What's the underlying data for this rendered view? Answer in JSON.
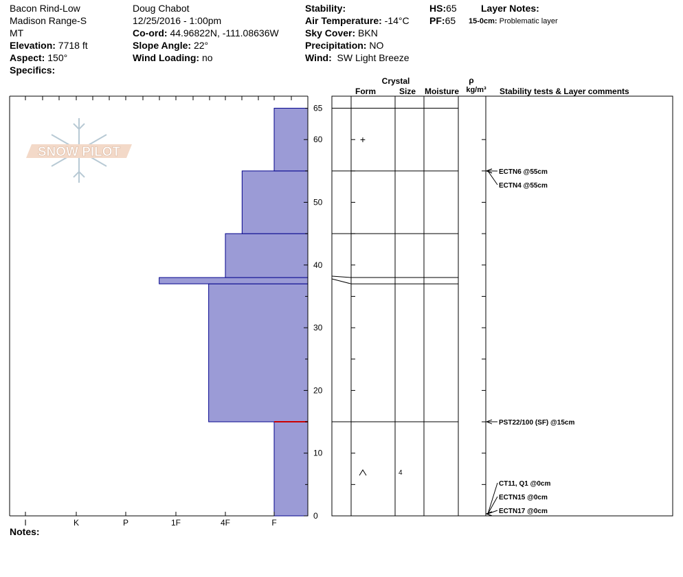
{
  "header": {
    "site": "Bacon Rind-Low",
    "range": "Madison Range-S",
    "state": "MT",
    "elevation_label": "Elevation:",
    "elevation": "7718 ft",
    "aspect_label": "Aspect:",
    "aspect": "150°",
    "specifics_label": "Specifics:",
    "observer": "Doug Chabot",
    "datetime": "12/25/2016 - 1:00pm",
    "coord_label": "Co-ord:",
    "coord": "44.96822N, -111.08636W",
    "slope_label": "Slope Angle:",
    "slope": "22°",
    "wind_loading_label": "Wind Loading:",
    "wind_loading": "no",
    "stability_label": "Stability:",
    "air_temp_label": "Air Temperature:",
    "air_temp": "-14°C",
    "sky_label": "Sky Cover:",
    "sky": "BKN",
    "precip_label": "Precipitation:",
    "precip": "NO",
    "wind_label": "Wind:",
    "wind": "SW Light Breeze",
    "hs_label": "HS:",
    "hs": "65",
    "pf_label": "PF:",
    "pf": "65",
    "layer_notes_label": "Layer Notes:",
    "layer_note_range": "15-0cm:",
    "layer_note_text": "Problematic layer"
  },
  "notes_label": "Notes:",
  "logo_text": "SNOW PILOT",
  "colors": {
    "profile_fill": "#9b9bd6",
    "profile_stroke": "#00008b",
    "weak_layer": "#cc0000"
  },
  "chart_data": {
    "type": "snow-profile",
    "y_ticks": [
      0,
      10,
      20,
      30,
      40,
      50,
      60,
      65
    ],
    "ylim": [
      0,
      65
    ],
    "hardness_scale": [
      "I",
      "K",
      "P",
      "1F",
      "4F",
      "F"
    ],
    "hardness_layers": [
      {
        "bottom": 0,
        "top": 15,
        "hardness": "F"
      },
      {
        "bottom": 15,
        "top": 37,
        "hardness": "4F+"
      },
      {
        "bottom": 37,
        "top": 38,
        "hardness": "1F+"
      },
      {
        "bottom": 38,
        "top": 45,
        "hardness": "4F"
      },
      {
        "bottom": 45,
        "top": 55,
        "hardness": "4F-"
      },
      {
        "bottom": 55,
        "top": 65,
        "hardness": "F"
      }
    ],
    "weak_layer_depth": 15,
    "layer_boundaries": [
      65,
      55,
      45,
      38,
      37,
      15
    ],
    "column_headers": {
      "crystal": "Crystal",
      "form": "Form",
      "size": "Size",
      "moisture": "Moisture",
      "rho": "ρ",
      "density_unit": "kg/m³",
      "stability": "Stability tests & Layer comments"
    },
    "crystal_forms": [
      {
        "depth": 60,
        "symbol": "+",
        "size": ""
      },
      {
        "depth": 7,
        "symbol": "^",
        "size": "4"
      }
    ],
    "stability_tests": [
      {
        "depth": 55,
        "text": "ECTN6 @55cm"
      },
      {
        "depth": 55,
        "text": "ECTN4 @55cm"
      },
      {
        "depth": 15,
        "text": "PST22/100 (SF) @15cm"
      },
      {
        "depth": 0,
        "text": "CT11, Q1 @0cm"
      },
      {
        "depth": 0,
        "text": "ECTN15 @0cm"
      },
      {
        "depth": 0,
        "text": "ECTN17 @0cm"
      }
    ]
  }
}
